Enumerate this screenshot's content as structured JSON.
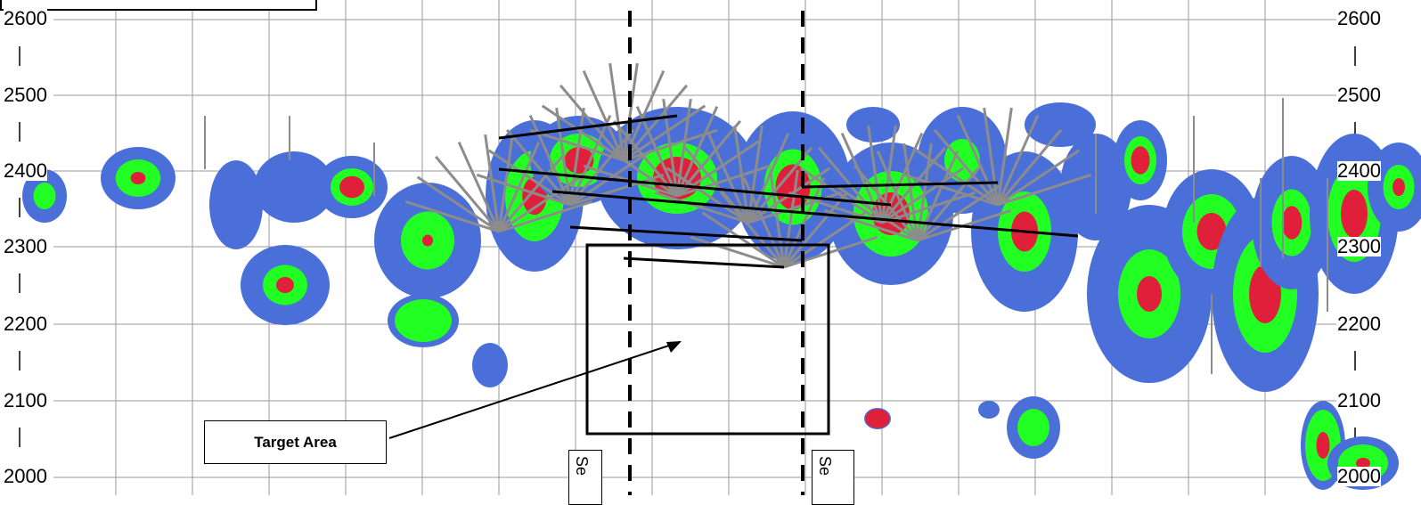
{
  "diagram": {
    "y_ticks": [
      "2600",
      "2500",
      "2400",
      "2300",
      "2200",
      "2100",
      "2000"
    ],
    "callout_label": "Target Area",
    "section_labels": [
      "Se",
      "Se"
    ],
    "colors": {
      "grid": "#9a9a9a",
      "blob_blue": "#4a6fd9",
      "blob_green": "#22ff22",
      "blob_red": "#e0203a",
      "drillhole": "#8c8c8c",
      "trace": "#000000"
    }
  }
}
